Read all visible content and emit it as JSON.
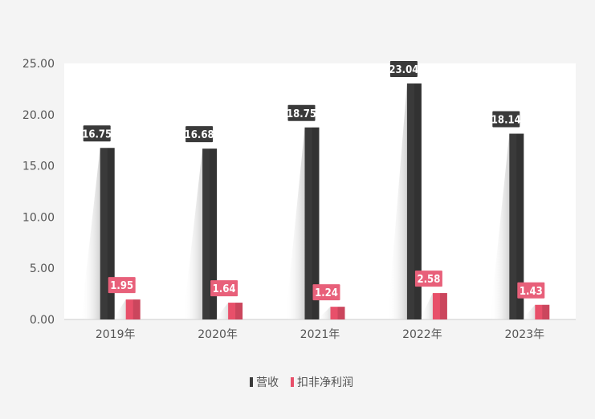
{
  "chart_data": {
    "type": "bar",
    "categories": [
      "2019年",
      "2020年",
      "2021年",
      "2022年",
      "2023年"
    ],
    "series": [
      {
        "name": "营收",
        "values": [
          16.75,
          16.68,
          18.75,
          23.04,
          18.14
        ],
        "labels": [
          "16.75",
          "16.68",
          "18.75",
          "23.04",
          "18.14"
        ],
        "color": "#3a3a3a",
        "label_bg": "#3a3a3a"
      },
      {
        "name": "扣非净利润",
        "values": [
          1.95,
          1.64,
          1.24,
          2.58,
          1.43
        ],
        "labels": [
          "1.95",
          "1.64",
          "1.24",
          "2.58",
          "1.43"
        ],
        "color": "#e8506a",
        "label_bg": "#e8607a"
      }
    ],
    "yticks": [
      "0.00",
      "5.00",
      "10.00",
      "15.00",
      "20.00",
      "25.00"
    ],
    "ylim": [
      0,
      25
    ],
    "grid": false,
    "legend_position": "bottom"
  }
}
